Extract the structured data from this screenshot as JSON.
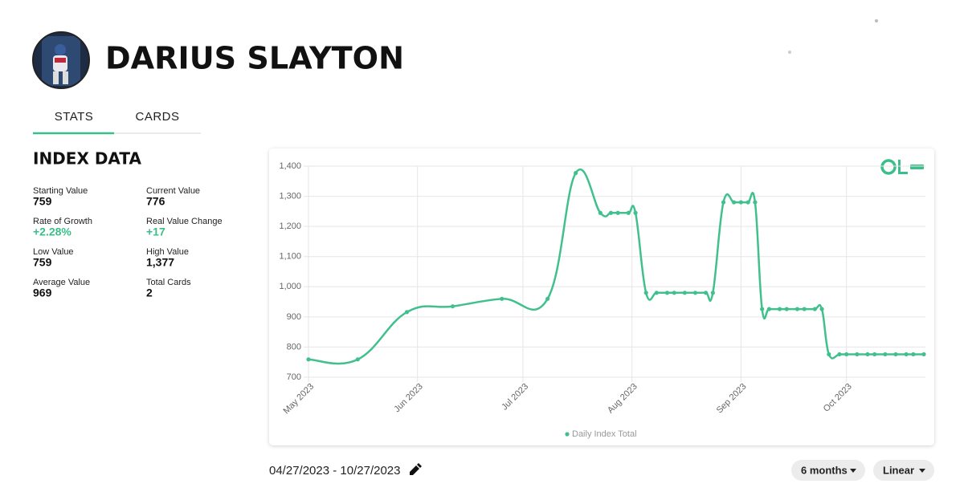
{
  "header": {
    "name": "DARIUS SLAYTON"
  },
  "tabs": [
    "STATS",
    "CARDS"
  ],
  "index_data": {
    "title": "INDEX DATA",
    "stats": [
      {
        "label": "Starting Value",
        "value": "759"
      },
      {
        "label": "Current Value",
        "value": "776"
      },
      {
        "label": "Rate of Growth",
        "value": "+2.28%"
      },
      {
        "label": "Real Value Change",
        "value": "+17"
      },
      {
        "label": "Low Value",
        "value": "759"
      },
      {
        "label": "High Value",
        "value": "1,377"
      },
      {
        "label": "Average Value",
        "value": "969"
      },
      {
        "label": "Total Cards",
        "value": "2"
      }
    ]
  },
  "chart_data": {
    "type": "line",
    "x": [
      "2023-05-01",
      "2023-05-15",
      "2023-05-29",
      "2023-06-11",
      "2023-06-25",
      "2023-07-08",
      "2023-07-16",
      "2023-07-23",
      "2023-07-26",
      "2023-07-28",
      "2023-07-31",
      "2023-08-02",
      "2023-08-05",
      "2023-08-08",
      "2023-08-11",
      "2023-08-13",
      "2023-08-16",
      "2023-08-19",
      "2023-08-22",
      "2023-08-24",
      "2023-08-27",
      "2023-08-30",
      "2023-09-01",
      "2023-09-03",
      "2023-09-05",
      "2023-09-07",
      "2023-09-09",
      "2023-09-12",
      "2023-09-14",
      "2023-09-17",
      "2023-09-19",
      "2023-09-22",
      "2023-09-24",
      "2023-09-26",
      "2023-09-29",
      "2023-10-01",
      "2023-10-04",
      "2023-10-07",
      "2023-10-09",
      "2023-10-12",
      "2023-10-15",
      "2023-10-18",
      "2023-10-20",
      "2023-10-23"
    ],
    "series": [
      {
        "name": "Daily Index Total",
        "color": "#41c08e",
        "values": [
          759,
          759,
          916,
          935,
          960,
          960,
          1377,
          1245,
          1245,
          1245,
          1245,
          1245,
          980,
          980,
          980,
          980,
          980,
          980,
          980,
          980,
          1280,
          1280,
          1280,
          1280,
          1280,
          926,
          926,
          926,
          926,
          926,
          926,
          926,
          926,
          776,
          776,
          776,
          776,
          776,
          776,
          776,
          776,
          776,
          776,
          776
        ]
      }
    ],
    "xlim": [
      "2023-05-01",
      "2023-10-23"
    ],
    "xticks": [
      {
        "value": "2023-05-01",
        "label": "May 2023"
      },
      {
        "value": "2023-06-01",
        "label": "Jun 2023"
      },
      {
        "value": "2023-07-01",
        "label": "Jul 2023"
      },
      {
        "value": "2023-08-01",
        "label": "Aug 2023"
      },
      {
        "value": "2023-09-01",
        "label": "Sep 2023"
      },
      {
        "value": "2023-10-01",
        "label": "Oct 2023"
      }
    ],
    "ylim": [
      700,
      1400
    ],
    "yticks": [
      700,
      800,
      900,
      {
        "value": 1000,
        "label": "1,000"
      },
      {
        "value": 1100,
        "label": "1,100"
      },
      {
        "value": 1200,
        "label": "1,200"
      },
      {
        "value": 1300,
        "label": "1,300"
      },
      {
        "value": 1400,
        "label": "1,400"
      }
    ],
    "grid": true,
    "legend": "bottom"
  },
  "date_range": "04/27/2023 - 10/27/2023",
  "controls": [
    "6 months",
    "Linear"
  ]
}
